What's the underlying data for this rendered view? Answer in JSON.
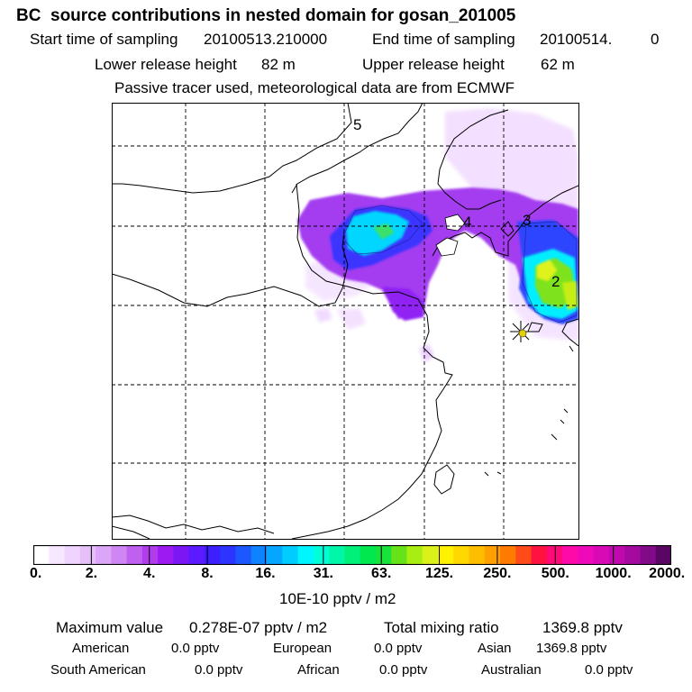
{
  "header": {
    "title": "BC  source contributions in nested domain for gosan_201005",
    "start_label": "Start time of sampling",
    "start_value": "20100513.210000",
    "end_label": "End time of sampling",
    "end_value": "20100514.",
    "end_value2": "0",
    "lower_label": "Lower release height",
    "lower_value": "82 m",
    "upper_label": "Upper release height",
    "upper_value": "62 m",
    "note": "Passive tracer used, meteorological data are from ECMWF"
  },
  "map": {
    "region_labels": [
      "5",
      "4",
      "3",
      "2"
    ],
    "receptor_marker": "star-icon"
  },
  "colorbar": {
    "colors": [
      "#ffffff",
      "#f7e8ff",
      "#efd4ff",
      "#e6bff9",
      "#dba6f7",
      "#cf85f3",
      "#c060ef",
      "#b03ced",
      "#9d1af2",
      "#7b16f5",
      "#5b1aff",
      "#3c1eff",
      "#2c34ff",
      "#1d58ff",
      "#0f82ff",
      "#05a6ff",
      "#00cdff",
      "#00f5ff",
      "#00ffd8",
      "#00f7a8",
      "#00f07a",
      "#00e84e",
      "#18e23c",
      "#66e218",
      "#a8ee12",
      "#d8f21a",
      "#fff200",
      "#ffd800",
      "#ffbd00",
      "#ffa000",
      "#ff7a00",
      "#ff4a1a",
      "#ff1240",
      "#ff0a78",
      "#ff0aaa",
      "#ee0ab8",
      "#d80ab6",
      "#c00aae",
      "#a50aa0",
      "#820a88",
      "#5a0664"
    ],
    "tick_labels": [
      "0.",
      "2.",
      "4.",
      "8.",
      "16.",
      "31.",
      "63.",
      "125.",
      "250.",
      "500.",
      "1000.",
      "2000."
    ],
    "unit": "10E-10 pptv / m2"
  },
  "footer": {
    "max_label": "Maximum value",
    "max_value": "0.278E-07 pptv / m2",
    "total_label": "Total mixing ratio",
    "total_value": "1369.8 pptv",
    "regions": [
      {
        "name": "American",
        "value": "0.0 pptv"
      },
      {
        "name": "European",
        "value": "0.0 pptv"
      },
      {
        "name": "Asian",
        "value": "1369.8 pptv"
      },
      {
        "name": "South American",
        "value": "0.0 pptv"
      },
      {
        "name": "African",
        "value": "0.0 pptv"
      },
      {
        "name": "Australian",
        "value": "0.0 pptv"
      }
    ]
  }
}
